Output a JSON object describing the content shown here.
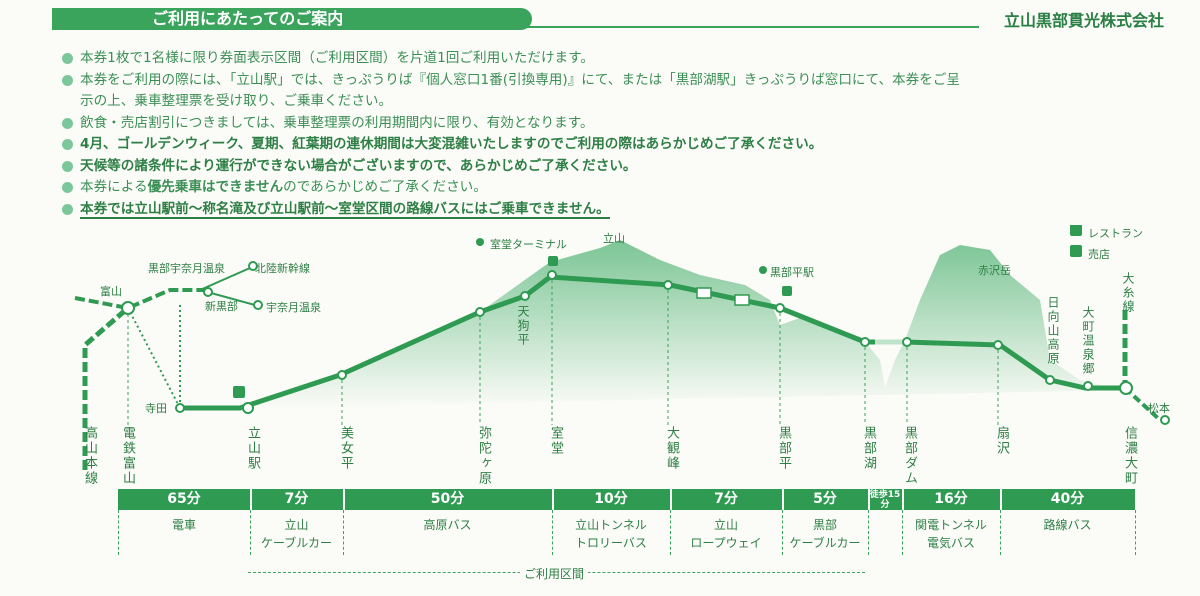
{
  "header": {
    "title": "ご利用にあたってのご案内",
    "company": "立山黒部貫光株式会社"
  },
  "notes": [
    {
      "text": "本券1枚で1名様に限り券面表示区間（ご利用区間）を片道1回ご利用いただけます。",
      "bold": false
    },
    {
      "text": "本券をご利用の際には、「立山駅」では、きっぷうりば『個人窓口1番(引換専用)』にて、または「黒部湖駅」きっぷうりば窓口にて、本券をご呈",
      "bold": false
    },
    {
      "text": "示の上、乗車整理票を受け取り、ご乗車ください。",
      "bold": false,
      "nodot": true
    },
    {
      "text": "飲食・売店割引につきましては、乗車整理票の利用期間内に限り、有効となります。",
      "bold": false
    },
    {
      "text": "4月、ゴールデンウィーク、夏期、紅葉期の連休期間は大変混雑いたしますのでご利用の際はあらかじめご了承ください。",
      "bold": true
    },
    {
      "text": "天候等の諸条件により運行ができない場合がございますので、あらかじめご了承ください。",
      "bold": true
    },
    {
      "text_pre": "本券による",
      "text_emph": "優先乗車はできません",
      "text_post": "のであらかじめご了承ください。",
      "bold": false,
      "mixed": true
    },
    {
      "text": "本券では立山駅前～称名滝及び立山駅前～室堂区間の路線バスにはご乗車できません。",
      "bold": true,
      "underline": true
    }
  ],
  "map": {
    "legend_restaurant": "レストラン",
    "legend_shop": "売店",
    "mountain_tateyama": "立山",
    "mountain_akazawa": "赤沢岳",
    "murodo_terminal": "室堂ターミナル",
    "kurobedaira_station": "黒部平駅",
    "tengudaira": "天狗平",
    "toyama": "富山",
    "unazuki_onsen_kurobe": "黒部宇奈月温泉",
    "hokuriku_shinkansen": "北陸新幹線",
    "shin_kurobe": "新黒部",
    "unazuki_onsen": "宇奈月温泉",
    "terada": "寺田",
    "hinatayama_kogen": "日向山高原",
    "omachi_onsenkyo": "大町温泉郷",
    "oito_line": "大糸線",
    "matsumoto": "松本"
  },
  "stations": [
    {
      "name": "高山本線"
    },
    {
      "name": "電鉄富山"
    },
    {
      "name": "立山駅"
    },
    {
      "name": "美女平"
    },
    {
      "name": "弥陀ヶ原"
    },
    {
      "name": "室堂"
    },
    {
      "name": "大観峰"
    },
    {
      "name": "黒部平"
    },
    {
      "name": "黒部湖"
    },
    {
      "name": "黒部ダム"
    },
    {
      "name": "扇沢"
    },
    {
      "name": "信濃大町"
    }
  ],
  "segments": [
    {
      "time": "65分",
      "label1": "電車",
      "label2": ""
    },
    {
      "time": "7分",
      "label1": "立山",
      "label2": "ケーブルカー"
    },
    {
      "time": "50分",
      "label1": "高原バス",
      "label2": ""
    },
    {
      "time": "10分",
      "label1": "立山トンネル",
      "label2": "トロリーバス"
    },
    {
      "time": "7分",
      "label1": "立山",
      "label2": "ロープウェイ"
    },
    {
      "time": "5分",
      "label1": "黒部",
      "label2": "ケーブルカー"
    },
    {
      "time": "徒歩15分",
      "label1": "",
      "label2": ""
    },
    {
      "time": "16分",
      "label1": "関電トンネル",
      "label2": "電気バス"
    },
    {
      "time": "40分",
      "label1": "路線バス",
      "label2": ""
    }
  ],
  "usage_section_label": "ご利用区間",
  "colors": {
    "green": "#2f9a52",
    "light_green": "#7cc79a",
    "bg": "#fbfbf7"
  }
}
